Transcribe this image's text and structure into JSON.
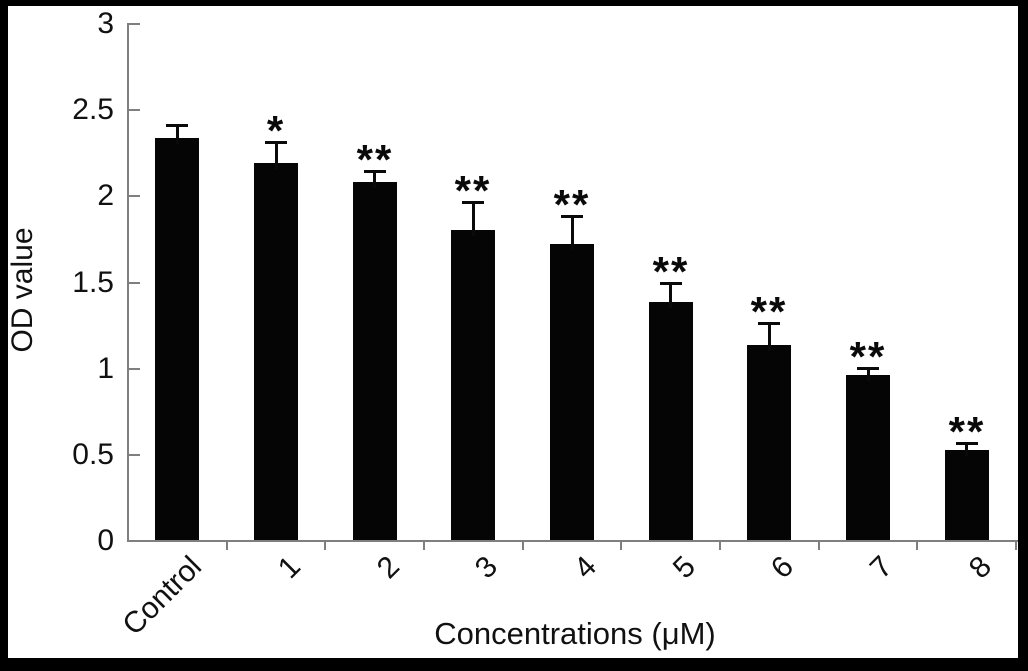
{
  "chart_data": {
    "type": "bar",
    "title": "",
    "xlabel": "Concentrations (μM)",
    "ylabel": "OD value",
    "categories": [
      "Control",
      "1",
      "2",
      "3",
      "4",
      "5",
      "6",
      "7",
      "8"
    ],
    "values": [
      2.33,
      2.19,
      2.08,
      1.8,
      1.72,
      1.38,
      1.13,
      0.96,
      0.52
    ],
    "error_upper": [
      0.08,
      0.12,
      0.06,
      0.16,
      0.16,
      0.11,
      0.13,
      0.04,
      0.04
    ],
    "significance": [
      "",
      "*",
      "**",
      "**",
      "**",
      "**",
      "**",
      "**",
      "**"
    ],
    "ytick_labels": [
      "0",
      "0.5",
      "1",
      "1.5",
      "2",
      "2.5",
      "3"
    ],
    "yticks": [
      0,
      0.5,
      1,
      1.5,
      2,
      2.5,
      3
    ],
    "ylim": [
      0,
      3
    ],
    "grid": false,
    "legend": null,
    "bar_color": "#050505",
    "axis_color": "#7f7f7f",
    "text_color": "#111111",
    "background_color": "#ffffff",
    "frame_color": "#000000"
  }
}
